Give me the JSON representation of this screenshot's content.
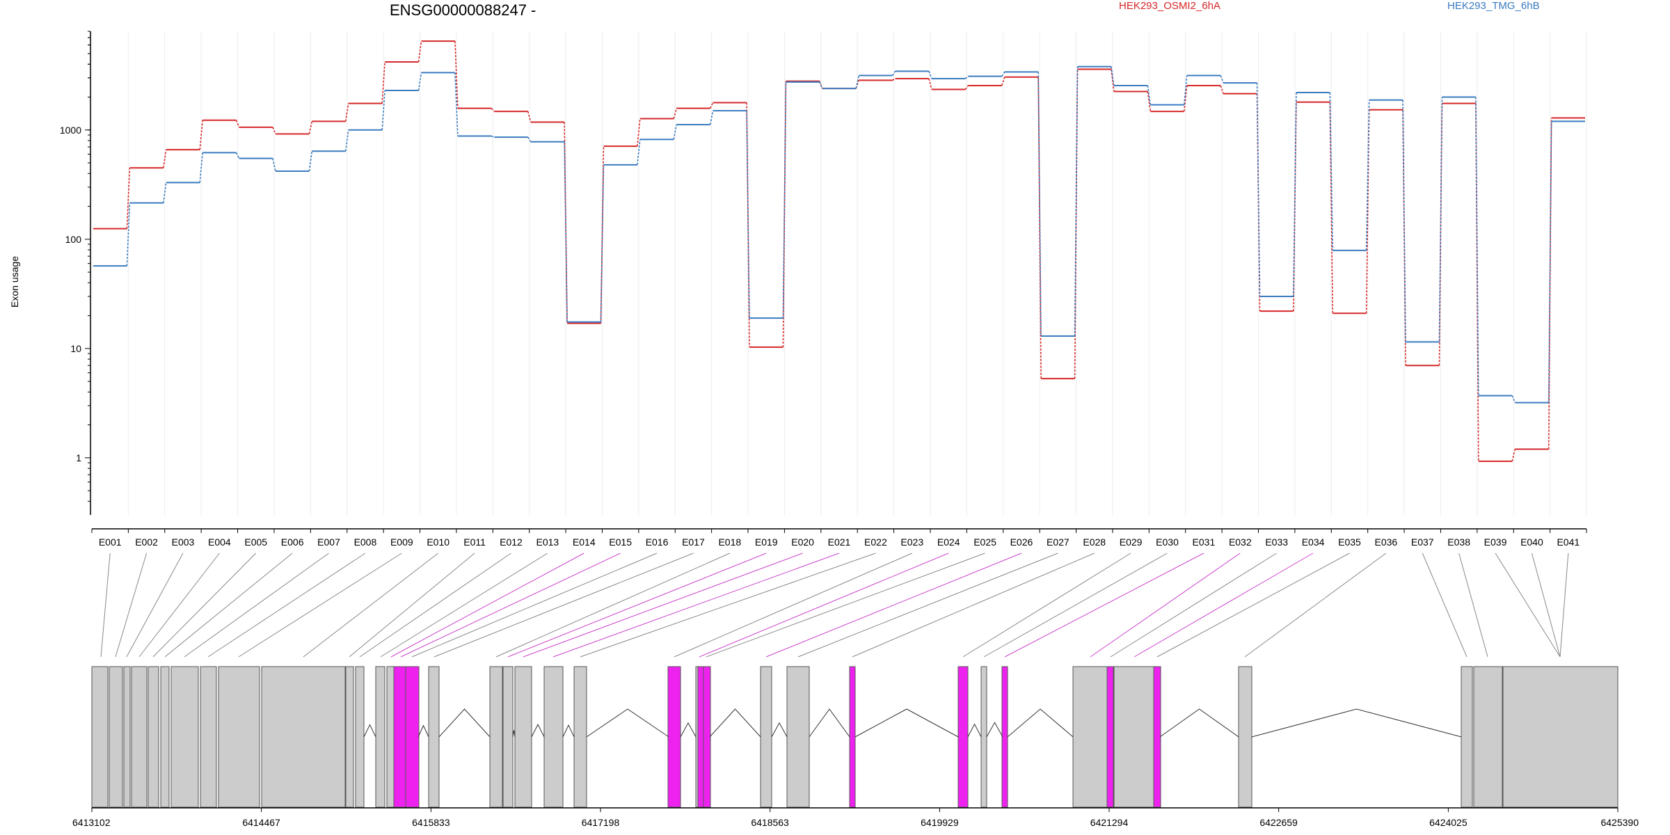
{
  "chart_data": {
    "type": "line",
    "title": "ENSG00000088247 -",
    "ylabel": "Exon usage",
    "y_scale": "log",
    "ylim": [
      0.3,
      8000
    ],
    "y_ticks": [
      1,
      10,
      100,
      1000
    ],
    "y_tick_labels": [
      "1",
      "10",
      "100",
      "1000"
    ],
    "grid": "vertical lines at each exon",
    "legend_placement": "top",
    "colors": {
      "HEK293_OSMI2_6hA": "#d62728",
      "HEK293_TMG_6hB": "#3a7bbf",
      "highlight": "#ee22ee",
      "exon_box": "#cccccc"
    },
    "categories": [
      "E001",
      "E002",
      "E003",
      "E004",
      "E005",
      "E006",
      "E007",
      "E008",
      "E009",
      "E010",
      "E011",
      "E012",
      "E013",
      "E014",
      "E015",
      "E016",
      "E017",
      "E018",
      "E019",
      "E020",
      "E021",
      "E022",
      "E023",
      "E024",
      "E025",
      "E026",
      "E027",
      "E028",
      "E029",
      "E030",
      "E031",
      "E032",
      "E033",
      "E034",
      "E035",
      "E036",
      "E037",
      "E038",
      "E039",
      "E040",
      "E041"
    ],
    "series": [
      {
        "name": "HEK293_OSMI2_6hA",
        "color": "#d62728",
        "values": [
          125,
          450,
          660,
          1230,
          1060,
          920,
          1200,
          1750,
          4200,
          6500,
          1580,
          1480,
          1180,
          17,
          710,
          1270,
          1580,
          1780,
          10.3,
          2800,
          2400,
          2850,
          2950,
          2350,
          2550,
          3050,
          5.3,
          3600,
          2250,
          1480,
          2550,
          2150,
          22,
          1800,
          21,
          1530,
          7,
          1750,
          0.93,
          1.2,
          1290
        ]
      },
      {
        "name": "HEK293_TMG_6hB",
        "color": "#3a7bbf",
        "values": [
          57,
          215,
          330,
          620,
          550,
          420,
          640,
          1000,
          2300,
          3350,
          880,
          860,
          780,
          17.5,
          480,
          820,
          1120,
          1500,
          19,
          2750,
          2400,
          3150,
          3450,
          2950,
          3100,
          3400,
          13,
          3800,
          2550,
          1700,
          3150,
          2700,
          30,
          2200,
          79,
          1880,
          11.5,
          2000,
          3.7,
          3.2,
          1200
        ]
      }
    ],
    "genomic_axis": {
      "ticks": [
        6413102,
        6414467,
        6415833,
        6417198,
        6418563,
        6419929,
        6421294,
        6422659,
        6424025,
        6425390
      ],
      "tick_labels": [
        "6413102",
        "6414467",
        "6415833",
        "6417198",
        "6418563",
        "6419929",
        "6421294",
        "6422659",
        "6424025",
        "6425390"
      ],
      "highlighted_exons": [
        "E014",
        "E015",
        "E019",
        "E020",
        "E021",
        "E024",
        "E026",
        "E031",
        "E032",
        "E034"
      ]
    }
  }
}
